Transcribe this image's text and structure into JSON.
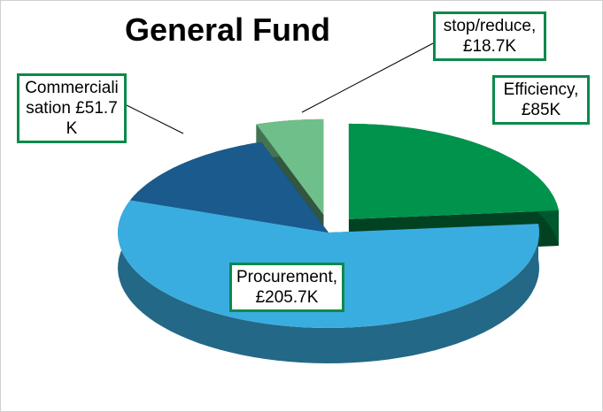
{
  "chart_data": {
    "type": "pie3d",
    "title": "General Fund",
    "values": [
      85,
      205.7,
      51.7,
      18.7
    ],
    "value_labels": [
      "Efficiency, £85K",
      "Procurement, £205.7K",
      "Commercialisation £51.7K",
      "stop/reduce, £18.7K"
    ],
    "colors": [
      "#00934c",
      "#3aade0",
      "#1b5a8c",
      "#6fbf8a"
    ],
    "explode": [
      true,
      false,
      false,
      true
    ]
  }
}
